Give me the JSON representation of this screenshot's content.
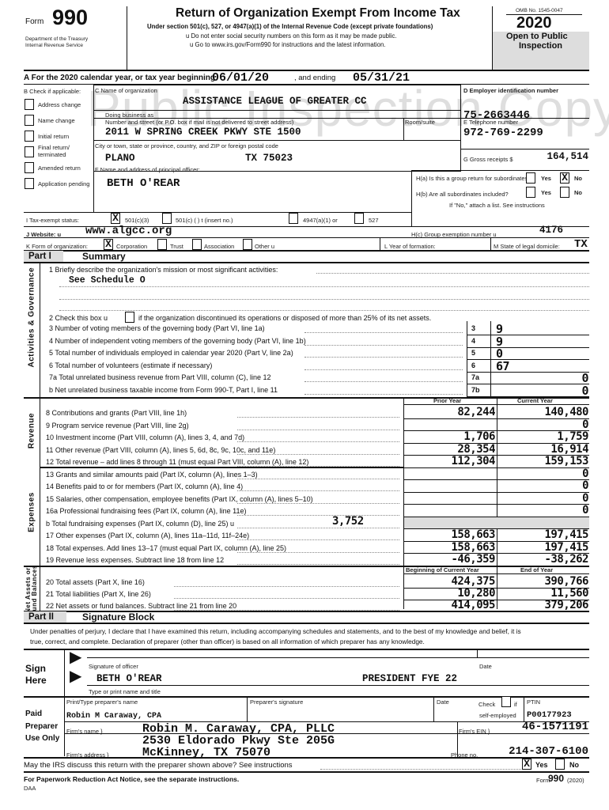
{
  "header": {
    "form_label": "Form",
    "form_number": "990",
    "dept": "Department of the Treasury",
    "irs": "Internal Revenue Service",
    "title": "Return of Organization Exempt From Income Tax",
    "subtitle": "Under section 501(c), 527, or 4947(a)(1) of the Internal Revenue Code (except private foundations)",
    "bullet1": "u  Do not enter social security numbers on this form as it may be made public.",
    "bullet2": "u  Go to www.irs.gov/Form990 for instructions and the latest information.",
    "omb": "OMB No. 1545-0047",
    "year": "2020",
    "open1": "Open to Public",
    "open2": "Inspection"
  },
  "watermark": "Public Inspection Copy",
  "row_a": {
    "label": "A   For the 2020 calendar year, or tax year beginning",
    "begin": "06/01/20",
    "ending_label": ", and ending",
    "end": "05/31/21"
  },
  "check_b": {
    "label": "B   Check if applicable:",
    "items": [
      "Address change",
      "Name change",
      "Initial return",
      "Final return/",
      "terminated",
      "Amended return",
      "Application pending"
    ]
  },
  "org": {
    "c_label": "C Name of organization",
    "name": "ASSISTANCE LEAGUE OF GREATER CC",
    "dba_label": "Doing business as",
    "street_label": "Number and street (or P.O. box if mail is not delivered to street address)",
    "room_label": "Room/suite",
    "street": "2011 W SPRING CREEK PKWY STE 1500",
    "city_label": "City or town, state or province, country, and ZIP or foreign postal code",
    "city": "PLANO",
    "state_zip": "TX 75023"
  },
  "right_col": {
    "d_label": "D Employer identification number",
    "ein": "75-2663446",
    "e_label": "E Telephone number",
    "phone": "972-769-2299",
    "g_label": "G Gross receipts $",
    "g_value": "164,514"
  },
  "officer": {
    "f_label": "F  Name and address of principal officer:",
    "name": "BETH O'REAR"
  },
  "group": {
    "ha": "H(a)  Is this a group return for subordinates?",
    "hb": "H(b)  Are all subordinates included?",
    "note": "If \"No,\" attach a list. See instructions",
    "yes": "Yes",
    "no": "No",
    "ha_no_mark": "X",
    "hc": "H(c)  Group exemption number u",
    "hc_value": "4176"
  },
  "row_i": {
    "label": "I     Tax-exempt status:",
    "mark": "X",
    "o1": "501(c)(3)",
    "o2": "501(c)   (          )  t  (insert no.)",
    "o3": "4947(a)(1) or",
    "o4": "527"
  },
  "row_j": {
    "label": "J     Website: u",
    "value": "www.algcc.org"
  },
  "row_k": {
    "label": "K     Form of organization:",
    "mark": "X",
    "o1": "Corporation",
    "o2": "Trust",
    "o3": "Association",
    "o4": "Other u",
    "l_label": "L   Year of formation:",
    "m_label": "M   State of legal domicile:",
    "m_value": "TX"
  },
  "part1": {
    "tag": "Part I",
    "title": "Summary",
    "side_ag": "Activities & Governance",
    "side_rev": "Revenue",
    "side_exp": "Expenses",
    "side_net1": "Net Assets or",
    "side_net2": "Fund Balances",
    "line1": "1  Briefly describe the organization's mission or most significant activities:",
    "mission": "See Schedule O",
    "line2a": "2  Check this box u",
    "line2b": "if the organization discontinued its operations or disposed of more than 25% of its net assets.",
    "gov_lines": [
      {
        "text": "3  Number of voting members of the governing body (Part VI, line 1a)",
        "box": "3",
        "value": "9"
      },
      {
        "text": "4  Number of independent voting members of the governing body (Part VI, line 1b)",
        "box": "4",
        "value": "9"
      },
      {
        "text": "5  Total number of individuals employed in calendar year 2020 (Part V, line 2a)",
        "box": "5",
        "value": "0"
      },
      {
        "text": "6  Total number of volunteers (estimate if necessary)",
        "box": "6",
        "value": "67"
      },
      {
        "text": "7a Total unrelated business revenue from Part VIII, column (C), line 12",
        "box": "7a",
        "value": "0"
      },
      {
        "text": "  b Net unrelated business taxable income from Form 990-T, Part I, line 11",
        "box": "7b",
        "value": "0"
      }
    ],
    "col_prior": "Prior Year",
    "col_current": "Current Year",
    "fin_lines": [
      {
        "text": "8  Contributions and grants (Part VIII, line 1h)",
        "prior": "82,244",
        "current": "140,480"
      },
      {
        "text": "9  Program service revenue (Part VIII, line 2g)",
        "prior": "",
        "current": "0"
      },
      {
        "text": "10  Investment income (Part VIII, column (A), lines 3, 4, and 7d)",
        "prior": "1,706",
        "current": "1,759"
      },
      {
        "text": "11  Other revenue (Part VIII, column (A), lines 5, 6d, 8c, 9c, 10c, and 11e)",
        "prior": "28,354",
        "current": "16,914"
      },
      {
        "text": "12  Total revenue – add lines 8 through 11 (must equal Part VIII, column (A), line 12)",
        "prior": "112,304",
        "current": "159,153"
      },
      {
        "text": "13  Grants and similar amounts paid (Part IX, column (A), lines 1–3)",
        "prior": "",
        "current": "0"
      },
      {
        "text": "14  Benefits paid to or for members (Part IX, column (A), line 4)",
        "prior": "",
        "current": "0"
      },
      {
        "text": "15  Salaries, other compensation, employee benefits (Part IX, column (A), lines 5–10)",
        "prior": "",
        "current": "0"
      },
      {
        "text": "16a Professional fundraising fees (Part IX, column (A), line 11e)",
        "prior": "",
        "current": "0"
      },
      {
        "text": "  b Total fundraising expenses (Part IX, column (D), line 25) u",
        "prior": "",
        "current": ""
      },
      {
        "text": "17  Other expenses (Part IX, column (A), lines 11a–11d, 11f–24e)",
        "prior": "158,663",
        "current": "197,415"
      },
      {
        "text": "18  Total expenses. Add lines 13–17 (must equal Part IX, column (A), line 25)",
        "prior": "158,663",
        "current": "197,415"
      },
      {
        "text": "19  Revenue less expenses. Subtract line 18 from line 12",
        "prior": "-46,359",
        "current": "-38,262"
      }
    ],
    "fundraising_16b": "3,752",
    "col_begin": "Beginning of Current Year",
    "col_end": "End of Year",
    "net_lines": [
      {
        "text": "20  Total assets (Part X, line 16)",
        "prior": "424,375",
        "current": "390,766"
      },
      {
        "text": "21  Total liabilities (Part X, line 26)",
        "prior": "10,280",
        "current": "11,560"
      },
      {
        "text": "22  Net assets or fund balances. Subtract line 21 from line 20",
        "prior": "414,095",
        "current": "379,206"
      }
    ]
  },
  "part2": {
    "tag": "Part II",
    "title": "Signature Block",
    "decl1": "Under penalties of perjury, I declare that I have examined this return, including accompanying schedules and statements, and to the best of my knowledge and belief, it is",
    "decl2": "true, correct, and complete. Declaration of preparer (other than officer) is based on all information of which preparer has any knowledge.",
    "sign": "Sign",
    "here": "Here",
    "sig_label": "Signature of officer",
    "date_label": "Date",
    "officer_name": "BETH O'REAR",
    "officer_title": "PRESIDENT FYE 22",
    "name_title_label": "Type or print name and title"
  },
  "preparer": {
    "paid": "Paid",
    "preparer": "Preparer",
    "use_only": "Use Only",
    "name_label": "Print/Type preparer's name",
    "sig_label": "Preparer's signature",
    "date_label": "Date",
    "check_label": "Check",
    "if_label": "if",
    "self_employed": "self-employed",
    "ptin_label": "PTIN",
    "name": "Robin M Caraway, CPA",
    "ptin": "P00177923",
    "firm_name_label": "Firm's name     }",
    "firm_name": "Robin M. Caraway, CPA, PLLC",
    "firm_ein_label": "Firm's EIN }",
    "firm_ein": "46-1571191",
    "firm_addr_label": "Firm's address   }",
    "addr1": "2530 Eldorado Pkwy Ste 205G",
    "addr2": "McKinney, TX  75070",
    "phone_label": "Phone no.",
    "phone": "214-307-6100"
  },
  "discuss": {
    "text": "May the IRS discuss this return with the preparer shown above? See instructions",
    "yes_mark": "X",
    "yes": "Yes",
    "no": "No"
  },
  "footer": {
    "notice": "For Paperwork Reduction Act Notice, see the separate instructions.",
    "daa": "DAA",
    "form": "Form",
    "number": "990",
    "year": "(2020)"
  }
}
